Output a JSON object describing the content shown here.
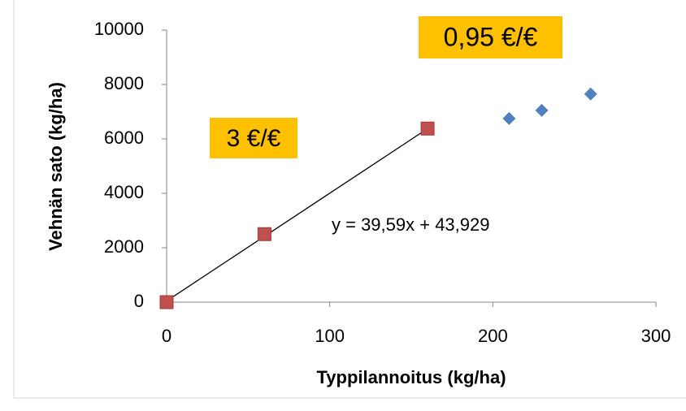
{
  "chart_data": {
    "type": "scatter",
    "xlabel": "Typpilannoitus (kg/ha)",
    "ylabel": "Vehnän sato (kg/ha)",
    "xlim": [
      0,
      300
    ],
    "xticks": [
      0,
      100,
      200,
      300
    ],
    "ylim": [
      0,
      10000
    ],
    "yticks": [
      0,
      2000,
      4000,
      6000,
      8000,
      10000
    ],
    "series": [
      {
        "marker": "square",
        "color": "#c0504d",
        "x": [
          0,
          60,
          160
        ],
        "values": [
          0,
          2500,
          6380
        ]
      },
      {
        "marker": "diamond",
        "color": "#4f81bd",
        "x": [
          210,
          230,
          260
        ],
        "values": [
          6750,
          7050,
          7650
        ]
      }
    ],
    "trendline": {
      "color": "#000000",
      "x": [
        0,
        160
      ],
      "values": [
        44,
        6378
      ]
    },
    "annotations": [
      {
        "text": "y = 39,59x + 43,929"
      },
      {
        "text": "3 €/€",
        "background": "#ffc000"
      },
      {
        "text": "0,95 €/€",
        "background": "#ffc000"
      }
    ]
  }
}
